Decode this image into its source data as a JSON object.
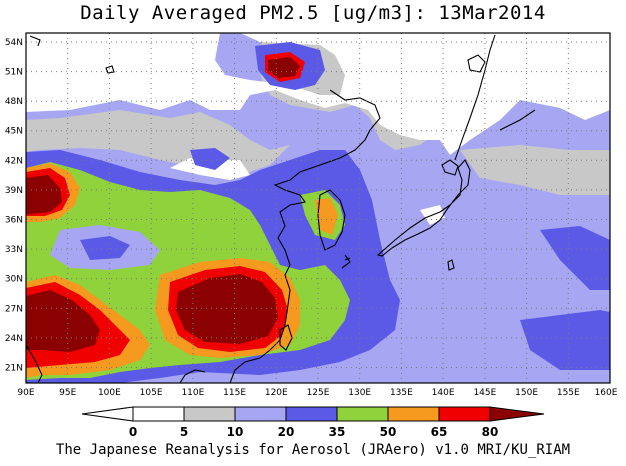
{
  "title": "Daily Averaged PM2.5 [ug/m3]: 13Mar2014",
  "credit": "The Japanese Reanalysis for Aerosol (JRAero) v1.0 MRI/KU_RIAM",
  "map": {
    "lon_range": [
      90,
      160
    ],
    "lat_range": [
      19.5,
      55
    ],
    "lat_labels": [
      "54N",
      "51N",
      "48N",
      "45N",
      "42N",
      "39N",
      "36N",
      "33N",
      "30N",
      "27N",
      "24N",
      "21N"
    ],
    "lon_labels": [
      "90E",
      "95E",
      "100E",
      "105E",
      "110E",
      "115E",
      "120E",
      "125E",
      "130E",
      "135E",
      "140E",
      "145E",
      "150E",
      "155E",
      "160E"
    ],
    "grid": true
  },
  "colorbar": {
    "levels": [
      "0",
      "5",
      "10",
      "20",
      "35",
      "50",
      "65",
      "80"
    ],
    "colors": [
      "#ffffff",
      "#ffffff",
      "#c8c8c8",
      "#a6a6f2",
      "#5a5ae6",
      "#8fd23c",
      "#f59a1e",
      "#f00000",
      "#8b0000"
    ]
  }
}
